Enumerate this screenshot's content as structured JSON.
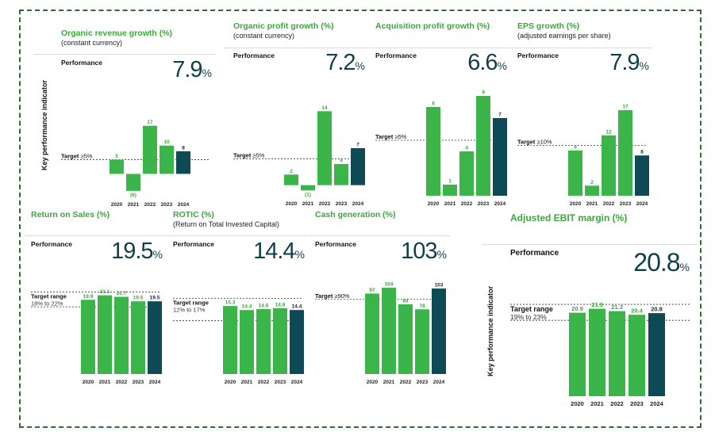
{
  "colors": {
    "green": "#3bb54a",
    "dark": "#0d4a55",
    "title_green": "#3aa83a"
  },
  "side_label": "Key performance indicator",
  "perf_label": "Performance",
  "chart_data": [
    {
      "id": "organic-revenue",
      "type": "bar",
      "title": "Organic revenue growth (%)",
      "subtitle": "(constant currency)",
      "performance": "7.9",
      "unit": "%",
      "target_label": "Target",
      "target_text": "≥5%",
      "target": 5,
      "categories": [
        "2020",
        "2021",
        "2022",
        "2023",
        "2024"
      ],
      "values": [
        5,
        -6,
        17,
        10,
        8
      ],
      "labels": [
        "5",
        "(6)",
        "17",
        "10",
        "8"
      ],
      "ylim": [
        -8,
        20
      ]
    },
    {
      "id": "organic-profit",
      "type": "bar",
      "title": "Organic profit growth (%)",
      "subtitle": "(constant currency)",
      "performance": "7.2",
      "unit": "%",
      "target_label": "Target",
      "target_text": "≥5%",
      "target": 5,
      "categories": [
        "2020",
        "2021",
        "2022",
        "2023",
        "2024"
      ],
      "values": [
        2,
        -1,
        14,
        4,
        7
      ],
      "labels": [
        "2",
        "(1)",
        "14",
        "4",
        "7"
      ],
      "ylim": [
        -2,
        16
      ]
    },
    {
      "id": "acquisition-profit",
      "type": "bar",
      "title": "Acquisition profit growth (%)",
      "subtitle": "",
      "performance": "6.6",
      "unit": "%",
      "target_label": "Target",
      "target_text": "≥5%",
      "target": 5,
      "categories": [
        "2020",
        "2021",
        "2022",
        "2023",
        "2024"
      ],
      "values": [
        8,
        1,
        4,
        9,
        7
      ],
      "labels": [
        "8",
        "1",
        "4",
        "9",
        "7"
      ],
      "ylim": [
        0,
        10
      ]
    },
    {
      "id": "eps-growth",
      "type": "bar",
      "title": "EPS growth (%)",
      "subtitle": "(adjusted earnings per share)",
      "performance": "7.9",
      "unit": "%",
      "target_label": "Target",
      "target_text": "≥10%",
      "target": 10,
      "categories": [
        "2020",
        "2021",
        "2022",
        "2023",
        "2024"
      ],
      "values": [
        9,
        2,
        12,
        17,
        8
      ],
      "labels": [
        "9",
        "2",
        "12",
        "17",
        "8"
      ],
      "ylim": [
        0,
        20
      ]
    },
    {
      "id": "return-on-sales",
      "type": "bar",
      "title": "Return on Sales (%)",
      "subtitle": "",
      "performance": "19.5",
      "unit": "%",
      "target_label": "Target range",
      "target_text": "18% to 22%",
      "target_range": [
        18,
        22
      ],
      "categories": [
        "2020",
        "2021",
        "2022",
        "2023",
        "2024"
      ],
      "values": [
        19.9,
        21.1,
        20.7,
        19.5,
        19.5
      ],
      "labels": [
        "19.9",
        "21.1",
        "20.7",
        "19.5",
        "19.5"
      ],
      "ylim": [
        0,
        24
      ]
    },
    {
      "id": "rotic",
      "type": "bar",
      "title": "ROTIC (%)",
      "subtitle": "(Return on Total Invested Capital)",
      "performance": "14.4",
      "unit": "%",
      "target_label": "Target range",
      "target_text": "12% to 17%",
      "target_range": [
        12,
        17
      ],
      "categories": [
        "2020",
        "2021",
        "2022",
        "2023",
        "2024"
      ],
      "values": [
        15.3,
        14.4,
        14.6,
        14.8,
        14.4
      ],
      "labels": [
        "15.3",
        "14.4",
        "14.6",
        "14.8",
        "14.4"
      ],
      "ylim": [
        0,
        18
      ]
    },
    {
      "id": "cash-generation",
      "type": "bar",
      "title": "Cash generation (%)",
      "subtitle": "",
      "performance": "103",
      "unit": "%",
      "target_label": "Target",
      "target_text": "≥90%",
      "target": 90,
      "categories": [
        "2020",
        "2021",
        "2022",
        "2023",
        "2024"
      ],
      "values": [
        97,
        104,
        84,
        78,
        103
      ],
      "labels": [
        "97",
        "104",
        "84",
        "78",
        "103"
      ],
      "ylim": [
        0,
        106
      ]
    },
    {
      "id": "adjusted-ebit",
      "type": "bar",
      "title": "Adjusted EBIT margin (%)",
      "subtitle": "",
      "performance": "20.8",
      "unit": "%",
      "target_label": "Target range",
      "target_text": "19% to 23%",
      "target_range": [
        19,
        23
      ],
      "categories": [
        "2020",
        "2021",
        "2022",
        "2023",
        "2024"
      ],
      "values": [
        20.9,
        21.9,
        21.3,
        20.4,
        20.8
      ],
      "labels": [
        "20.9",
        "21.9",
        "21.3",
        "20.4",
        "20.8"
      ],
      "ylim": [
        0,
        24
      ]
    }
  ]
}
